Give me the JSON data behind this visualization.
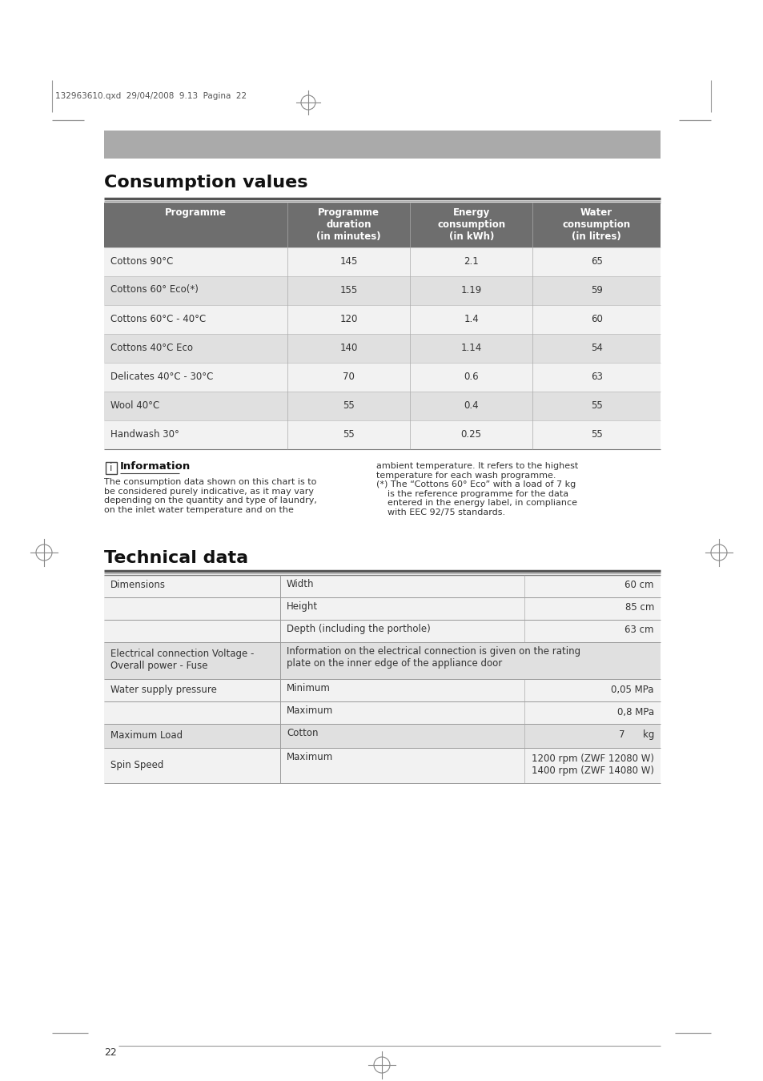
{
  "page_header": "132963610.qxd  29/04/2008  9.13  Pagina  22",
  "section1_title": "Consumption values",
  "table1_header_bg": "#6e6e6e",
  "table1_header_color": "#ffffff",
  "table1_headers": [
    "Programme",
    "Programme\nduration\n(in minutes)",
    "Energy\nconsumption\n(in kWh)",
    "Water\nconsumption\n(in litres)"
  ],
  "table1_row_colors": [
    "#f2f2f2",
    "#e0e0e0",
    "#f2f2f2",
    "#e0e0e0",
    "#f2f2f2",
    "#e0e0e0",
    "#f2f2f2"
  ],
  "table1_rows": [
    [
      "Cottons 90°C",
      "145",
      "2.1",
      "65"
    ],
    [
      "Cottons 60° Eco(*)",
      "155",
      "1.19",
      "59"
    ],
    [
      "Cottons 60°C - 40°C",
      "120",
      "1.4",
      "60"
    ],
    [
      "Cottons 40°C Eco",
      "140",
      "1.14",
      "54"
    ],
    [
      "Delicates 40°C - 30°C",
      "70",
      "0.6",
      "63"
    ],
    [
      "Wool 40°C",
      "55",
      "0.4",
      "55"
    ],
    [
      "Handwash 30°",
      "55",
      "0.25",
      "55"
    ]
  ],
  "info_title": "Information",
  "info_left": "The consumption data shown on this chart is to\nbe considered purely indicative, as it may vary\ndepending on the quantity and type of laundry,\non the inlet water temperature and on the",
  "info_right": "ambient temperature. It refers to the highest\ntemperature for each wash programme.\n(*) The “Cottons 60° Eco” with a load of 7 kg\n    is the reference programme for the data\n    entered in the energy label, in compliance\n    with EEC 92/75 standards.",
  "section2_title": "Technical data",
  "page_number": "22",
  "background_color": "#ffffff",
  "gray_bar_color": "#aaaaaa",
  "divider_color": "#555555",
  "text_color": "#333333",
  "body_font_size": 8.5,
  "title_font_size": 16,
  "t2_row_colors": [
    "#f2f2f2",
    "#e0e0e0",
    "#f2f2f2",
    "#e0e0e0",
    "#f2f2f2"
  ],
  "t2_rows": [
    [
      "Dimensions",
      "Width",
      "60 cm"
    ],
    [
      "",
      "Height",
      "85 cm"
    ],
    [
      "",
      "Depth (including the porthole)",
      "63 cm"
    ],
    [
      "Electrical connection Voltage -\nOverall power - Fuse",
      "Information on the electrical connection is given on the rating\nplate on the inner edge of the appliance door",
      ""
    ],
    [
      "Water supply pressure",
      "Minimum",
      "0,05 MPa"
    ],
    [
      "",
      "Maximum",
      "0,8 MPa"
    ],
    [
      "Maximum Load",
      "Cotton",
      "7      kg"
    ],
    [
      "Spin Speed",
      "Maximum",
      "1200 rpm (ZWF 12080 W)\n1400 rpm (ZWF 14080 W)"
    ]
  ],
  "t2_row_bg": [
    "#f2f2f2",
    "#f2f2f2",
    "#f2f2f2",
    "#e0e0e0",
    "#f2f2f2",
    "#f2f2f2",
    "#e0e0e0",
    "#f2f2f2"
  ]
}
